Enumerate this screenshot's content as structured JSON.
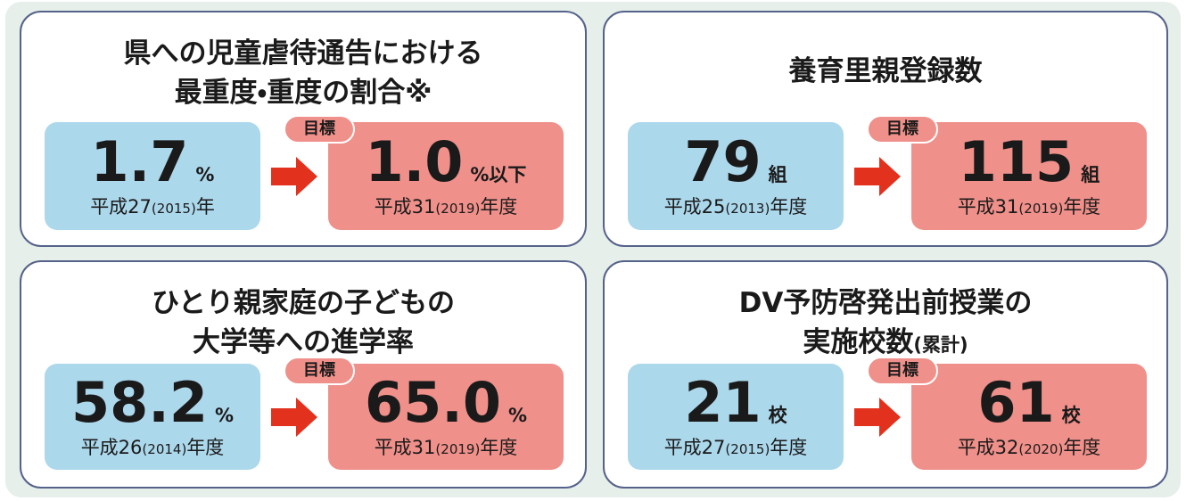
{
  "cards": [
    {
      "title_lines": [
        "県への児童虐待通告における",
        "最重度・重度の割合※"
      ],
      "current": {
        "value": "1.7",
        "unit": "%",
        "era": "平成27",
        "year": "(2015)",
        "suffix": "年"
      },
      "target_label": "目標",
      "target": {
        "value": "1.0",
        "unit": "%以下",
        "era": "平成31",
        "year": "(2019)",
        "suffix": "年度"
      }
    },
    {
      "title_lines": [
        "養育里親登録数"
      ],
      "current": {
        "value": "79",
        "unit": "組",
        "era": "平成25",
        "year": "(2013)",
        "suffix": "年度"
      },
      "target_label": "目標",
      "target": {
        "value": "115",
        "unit": "組",
        "era": "平成31",
        "year": "(2019)",
        "suffix": "年度"
      }
    },
    {
      "title_lines": [
        "ひとり親家庭の子どもの",
        "大学等への進学率"
      ],
      "current": {
        "value": "58.2",
        "unit": "%",
        "era": "平成26",
        "year": "(2014)",
        "suffix": "年度"
      },
      "target_label": "目標",
      "target": {
        "value": "65.0",
        "unit": "%",
        "era": "平成31",
        "year": "(2019)",
        "suffix": "年度"
      }
    },
    {
      "title_lines": [
        "DV予防啓発出前授業の",
        "実施校数"
      ],
      "title_note": "(累計)",
      "current": {
        "value": "21",
        "unit": "校",
        "era": "平成27",
        "year": "(2015)",
        "suffix": "年度"
      },
      "target_label": "目標",
      "target": {
        "value": "61",
        "unit": "校",
        "era": "平成32",
        "year": "(2020)",
        "suffix": "年度"
      }
    }
  ]
}
